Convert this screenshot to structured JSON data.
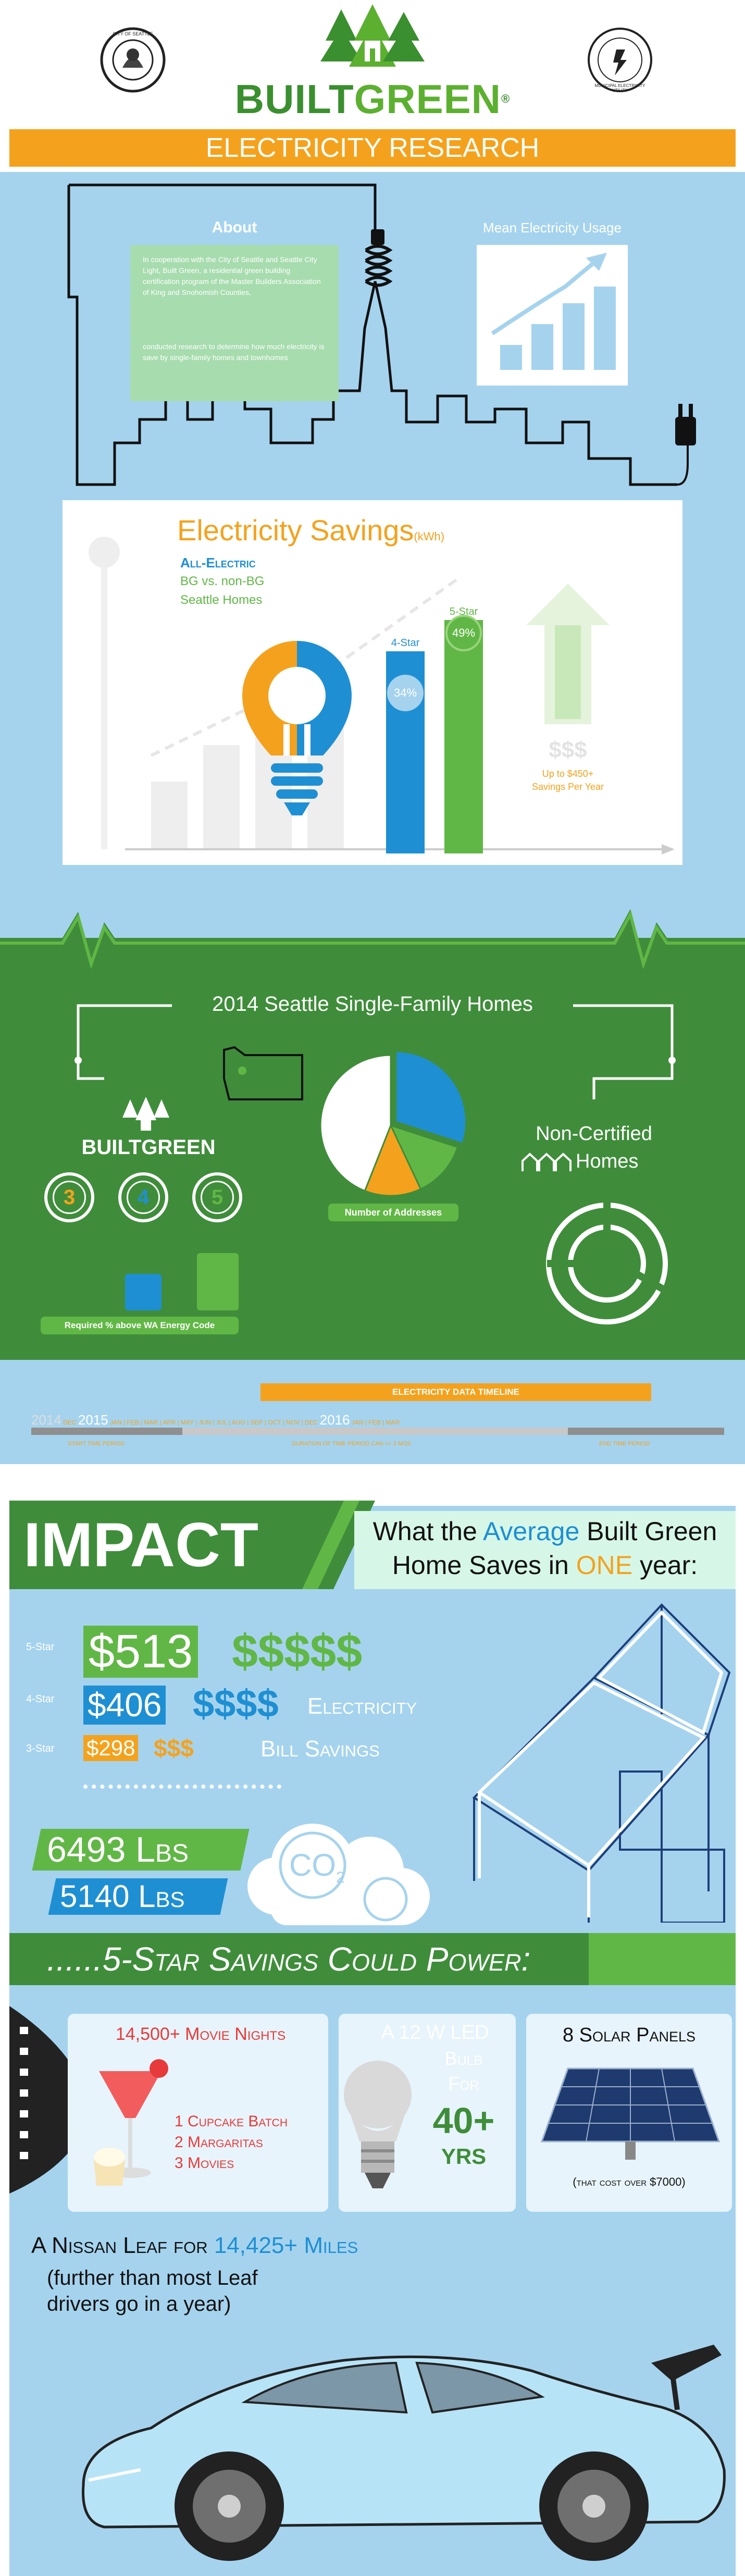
{
  "header": {
    "brand_part1": "BUILT",
    "brand_part2": "GREEN",
    "trademark": "®",
    "banner": "ELECTRICITY RESEARCH",
    "seal_left_text": "CITY OF SEATTLE",
    "seal_right_text": "MUNICIPAL ELECTRICITY UTILITY"
  },
  "about": {
    "title": "About",
    "paragraph1": "In cooperation with the City of Seattle and Seattle City Light, Built Green, a residential green building certification program of the Master Builders Association of King and Snohomish Counties,",
    "paragraph2": "conducted research to determine how much electricity is save by single-family homes and townhomes"
  },
  "mean_usage": {
    "title": "Mean Electricity Usage",
    "bars": [
      0.3,
      0.55,
      0.8,
      1.0
    ]
  },
  "savings": {
    "title": "Electricity Savings",
    "unit": "(kWh)",
    "subtitle1": "All-Electric",
    "subtitle2": "BG vs. non-BG",
    "subtitle3": "Seattle Homes",
    "four_star_label": "4-Star",
    "four_star_pct": "34%",
    "five_star_label": "5-Star",
    "five_star_pct": "49%",
    "dollar": "$$$",
    "up_to": "Up to $450+",
    "per_year": "Savings Per Year",
    "four_star_value": 34,
    "five_star_value": 49
  },
  "homes": {
    "title": "2014 Seattle Single-Family Homes",
    "pie_label": "Number of Addresses",
    "builtgreen_part1": "BUILT",
    "builtgreen_part2": "GREEN",
    "stars": [
      "3",
      "4",
      "5"
    ],
    "required_note": "Required % above WA Energy Code",
    "noncert_line1": "Non-Certified",
    "noncert_line2": "Homes",
    "pie_slices": [
      {
        "value": 30,
        "color": "#1f8fd3"
      },
      {
        "value": 13,
        "color": "#61b746"
      },
      {
        "value": 13,
        "color": "#f4a21d"
      },
      {
        "value": 44,
        "color": "#ffffff"
      }
    ],
    "colors": {
      "blue": "#1f8fd3",
      "green": "#61b746",
      "orange": "#f4a21d"
    }
  },
  "timeline": {
    "title": "ELECTRICITY DATA TIMELINE",
    "year1": "2014",
    "dec": "DEC",
    "year2": "2015",
    "months": [
      "JAN",
      "FEB",
      "MAR",
      "APR",
      "MAY",
      "JUN",
      "JUL",
      "AUG",
      "SEP",
      "OCT",
      "NOV",
      "DEC"
    ],
    "year3": "2016",
    "months_end": [
      "JAN",
      "FEB",
      "MAR"
    ],
    "start_label": "START TIME PERIOD",
    "duration_label": "DURATION OF TIME PERIOD CAN +/- 3 MOS",
    "end_label": "END TIME PERIOD"
  },
  "impact": {
    "heading": "IMPACT",
    "avg_line1_a": "What the ",
    "avg_line1_b": "Average",
    "avg_line1_c": " Built Green",
    "avg_line2_a": "Home Saves in ",
    "avg_line2_b": "ONE",
    "avg_line2_c": " year:",
    "five_star": "5-Star",
    "five_value": "$513",
    "five_signs": "$$$$$",
    "four_star": "4-Star",
    "four_value": "$406",
    "four_signs": "$$$$",
    "three_star": "3-Star",
    "three_value": "$298",
    "three_signs": "$$$",
    "electricity": "Electricity",
    "bill_savings": "Bill Savings",
    "co2_green": "6493 Lbs",
    "co2_blue": "5140 Lbs",
    "co2_label": "CO",
    "co2_sub": "2"
  },
  "power": {
    "title": "......5-Star Savings Could Power:",
    "movie_title": "14,500+ Movie Nights",
    "movie_1": "1 Cupcake Batch",
    "movie_2": "2 Margaritas",
    "movie_3": "3 Movies",
    "led_1": "A 12 W LED",
    "led_2": "Bulb",
    "led_3": "For",
    "led_4": "40+",
    "led_5": "YRS",
    "solar_title": "8 Solar Panels",
    "solar_note": "(that cost over $7000)",
    "leaf_a": "A Nissan Leaf for ",
    "leaf_b": "14,425+ Miles",
    "leaf_note1": "(further than most Leaf",
    "leaf_note2": "drivers go in a year)"
  }
}
